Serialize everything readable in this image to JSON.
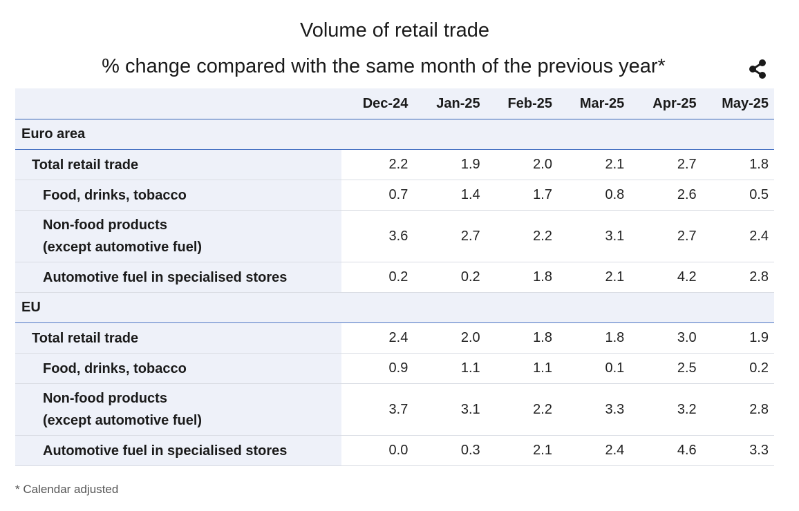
{
  "title": "Volume of retail trade",
  "subtitle": "% change compared with the same month of the previous year*",
  "share_icon": "share-icon",
  "footnote": "* Calendar adjusted",
  "chart_data": {
    "type": "table",
    "title": "Volume of retail trade",
    "subtitle": "% change compared with the same month of the previous year*",
    "columns": [
      "Dec-24",
      "Jan-25",
      "Feb-25",
      "Mar-25",
      "Apr-25",
      "May-25"
    ],
    "groups": [
      {
        "name": "Euro area",
        "rows": [
          {
            "label": "Total retail trade",
            "level": 1,
            "values": [
              2.2,
              1.9,
              2.0,
              2.1,
              2.7,
              1.8
            ]
          },
          {
            "label": "Food, drinks, tobacco",
            "level": 2,
            "values": [
              0.7,
              1.4,
              1.7,
              0.8,
              2.6,
              0.5
            ]
          },
          {
            "label": "Non-food products",
            "label2": "(except automotive fuel)",
            "level": 2,
            "values": [
              3.6,
              2.7,
              2.2,
              3.1,
              2.7,
              2.4
            ]
          },
          {
            "label": "Automotive fuel in specialised stores",
            "level": 2,
            "values": [
              0.2,
              0.2,
              1.8,
              2.1,
              4.2,
              2.8
            ]
          }
        ]
      },
      {
        "name": "EU",
        "rows": [
          {
            "label": "Total retail trade",
            "level": 1,
            "values": [
              2.4,
              2.0,
              1.8,
              1.8,
              3.0,
              1.9
            ]
          },
          {
            "label": "Food, drinks, tobacco",
            "level": 2,
            "values": [
              0.9,
              1.1,
              1.1,
              0.1,
              2.5,
              0.2
            ]
          },
          {
            "label": "Non-food products",
            "label2": "(except automotive fuel)",
            "level": 2,
            "values": [
              3.7,
              3.1,
              2.2,
              3.3,
              3.2,
              2.8
            ]
          },
          {
            "label": "Automotive fuel in specialised stores",
            "level": 2,
            "values": [
              0.0,
              0.3,
              2.1,
              2.4,
              4.6,
              3.3
            ]
          }
        ]
      }
    ],
    "footnote": "* Calendar adjusted"
  }
}
